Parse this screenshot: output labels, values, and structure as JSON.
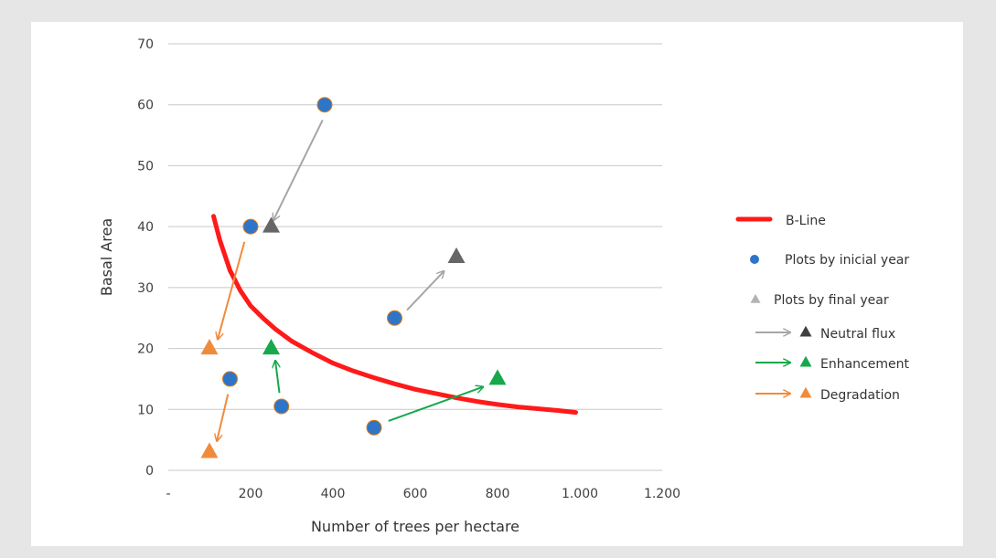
{
  "chart_data": {
    "type": "scatter",
    "xlabel": "Number of trees per hectare",
    "ylabel": "Basal Area",
    "xlim": [
      0,
      1200
    ],
    "ylim": [
      0,
      70
    ],
    "x_ticks": [
      {
        "value": 0,
        "label": "-"
      },
      {
        "value": 200,
        "label": "200"
      },
      {
        "value": 400,
        "label": "400"
      },
      {
        "value": 600,
        "label": "600"
      },
      {
        "value": 800,
        "label": "800"
      },
      {
        "value": 1000,
        "label": "1.000"
      },
      {
        "value": 1200,
        "label": "1.200"
      }
    ],
    "y_ticks": [
      0,
      10,
      20,
      30,
      40,
      50,
      60,
      70
    ],
    "grid": "horizontal",
    "legend_position": "right",
    "series": [
      {
        "name": "B-Line",
        "kind": "line",
        "color": "#ff1a1a",
        "x": [
          110,
          125,
          150,
          175,
          200,
          230,
          260,
          300,
          350,
          400,
          450,
          500,
          550,
          600,
          650,
          700,
          750,
          800,
          850,
          900,
          950,
          990
        ],
        "y": [
          41.7,
          37.8,
          32.8,
          29.5,
          27.0,
          25.0,
          23.2,
          21.2,
          19.3,
          17.6,
          16.3,
          15.2,
          14.2,
          13.3,
          12.6,
          11.9,
          11.3,
          10.8,
          10.4,
          10.1,
          9.8,
          9.5
        ]
      },
      {
        "name": "Plots by inicial year",
        "kind": "scatter",
        "marker": "circle",
        "color": "#2e75c8",
        "points": [
          {
            "x": 380,
            "y": 60
          },
          {
            "x": 200,
            "y": 40
          },
          {
            "x": 550,
            "y": 25
          },
          {
            "x": 150,
            "y": 15
          },
          {
            "x": 275,
            "y": 10.5
          },
          {
            "x": 500,
            "y": 7
          }
        ]
      },
      {
        "name": "Plots by final year",
        "kind": "scatter",
        "marker": "triangle",
        "points": [
          {
            "x": 250,
            "y": 40,
            "color": "#666666"
          },
          {
            "x": 700,
            "y": 35,
            "color": "#666666"
          },
          {
            "x": 100,
            "y": 20,
            "color": "#f08b3c"
          },
          {
            "x": 250,
            "y": 20,
            "color": "#17a84c"
          },
          {
            "x": 800,
            "y": 15,
            "color": "#17a84c"
          },
          {
            "x": 100,
            "y": 3,
            "color": "#f08b3c"
          }
        ]
      }
    ],
    "arrows": [
      {
        "type": "Neutral flux",
        "color": "#a6a6a6",
        "from": [
          375,
          57.5
        ],
        "to": [
          255,
          41
        ]
      },
      {
        "type": "Neutral flux",
        "color": "#a6a6a6",
        "from": [
          580,
          26.3
        ],
        "to": [
          670,
          32.7
        ]
      },
      {
        "type": "Enhancement",
        "color": "#17a84c",
        "from": [
          270,
          12.7
        ],
        "to": [
          260,
          18
        ]
      },
      {
        "type": "Enhancement",
        "color": "#17a84c",
        "from": [
          535,
          8.1
        ],
        "to": [
          765,
          13.7
        ]
      },
      {
        "type": "Degradation",
        "color": "#f08b3c",
        "from": [
          185,
          37.5
        ],
        "to": [
          120,
          21.5
        ]
      },
      {
        "type": "Degradation",
        "color": "#f08b3c",
        "from": [
          145,
          12.5
        ],
        "to": [
          118,
          4.8
        ]
      }
    ]
  },
  "legend": {
    "items": [
      {
        "kind": "line",
        "label": "B-Line",
        "color": "#ff1a1a"
      },
      {
        "kind": "circle",
        "label": "Plots by inicial year",
        "color": "#2e75c8"
      },
      {
        "kind": "triangle",
        "label": "Plots by final year",
        "color": "#b3b3b3"
      },
      {
        "kind": "arrow-triangle",
        "label": "Neutral flux",
        "arrow_color": "#a6a6a6",
        "color": "#404040"
      },
      {
        "kind": "arrow-triangle",
        "label": "Enhancement",
        "arrow_color": "#17a84c",
        "color": "#17a84c"
      },
      {
        "kind": "arrow-triangle",
        "label": "Degradation",
        "arrow_color": "#f08b3c",
        "color": "#f08b3c"
      }
    ]
  },
  "colors": {
    "gridline": "#c8c8c8",
    "marker_outline": "#e07a10"
  }
}
